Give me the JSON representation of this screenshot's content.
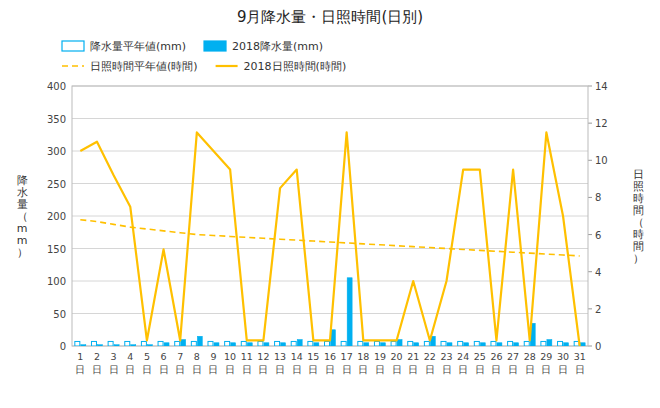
{
  "chart_data": {
    "type": "bar",
    "title": "9月降水量・日照時間(日別)",
    "categories": [
      "1\n日",
      "2\n日",
      "3\n日",
      "4\n日",
      "5\n日",
      "6\n日",
      "7\n日",
      "8\n日",
      "9\n日",
      "10\n日",
      "11\n日",
      "12\n日",
      "13\n日",
      "14\n日",
      "15\n日",
      "16\n日",
      "17\n日",
      "18\n日",
      "19\n日",
      "20\n日",
      "21\n日",
      "22\n日",
      "23\n日",
      "24\n日",
      "25\n日",
      "26\n日",
      "27\n日",
      "28\n日",
      "29\n日",
      "30\n日",
      "31\n日"
    ],
    "series": [
      {
        "name": "降水量平年値(mm)",
        "type": "bar",
        "color": "#00b0f0",
        "line_style": "hollow",
        "values": [
          7,
          7,
          7,
          7,
          7,
          7,
          7,
          7,
          7,
          7,
          7,
          7,
          7,
          7,
          7,
          7,
          7,
          7,
          7,
          7,
          7,
          7,
          7,
          7,
          7,
          7,
          7,
          7,
          7,
          7,
          7
        ]
      },
      {
        "name": "2018降水量(mm)",
        "type": "bar",
        "color": "#00b0f0",
        "values": [
          2,
          2,
          2,
          2,
          2,
          5,
          10,
          15,
          5,
          5,
          5,
          5,
          5,
          10,
          5,
          25,
          105,
          5,
          5,
          10,
          5,
          15,
          5,
          5,
          5,
          5,
          5,
          35,
          10,
          5,
          5
        ]
      },
      {
        "name": "日照時間平年値(時間)",
        "type": "line",
        "axis": "y2",
        "color": "#ffc000",
        "line_style": "dashed",
        "values": [
          6.8,
          6.7,
          6.55,
          6.4,
          6.3,
          6.2,
          6.1,
          6.0,
          5.95,
          5.9,
          5.85,
          5.8,
          5.75,
          5.7,
          5.65,
          5.6,
          5.55,
          5.5,
          5.45,
          5.4,
          5.35,
          5.3,
          5.25,
          5.2,
          5.15,
          5.1,
          5.05,
          5.0,
          4.95,
          4.9,
          4.85
        ]
      },
      {
        "name": "2018日照時間(時間)",
        "type": "line",
        "axis": "y2",
        "color": "#ffc000",
        "line_style": "solid",
        "values": [
          10.5,
          11.0,
          9.2,
          7.5,
          0.3,
          5.2,
          0.3,
          11.5,
          10.5,
          9.5,
          0.3,
          0.3,
          8.5,
          9.5,
          0.3,
          0.3,
          11.5,
          0.3,
          0.3,
          0.3,
          3.5,
          0.3,
          3.5,
          9.5,
          9.5,
          0.3,
          9.5,
          0.3,
          11.5,
          7.0,
          0.0
        ]
      }
    ],
    "ylabel": "降\n水\n量\n（\nm\nm\n）",
    "y2label": "日\n照\n時\n間\n（\n時\n間\n）",
    "ylim": [
      0,
      400
    ],
    "yticks": [
      0,
      50,
      100,
      150,
      200,
      250,
      300,
      350,
      400
    ],
    "y2lim": [
      0,
      14
    ],
    "y2ticks": [
      0,
      2,
      4,
      6,
      8,
      10,
      12,
      14
    ],
    "grid": true,
    "legend": "top-left"
  }
}
